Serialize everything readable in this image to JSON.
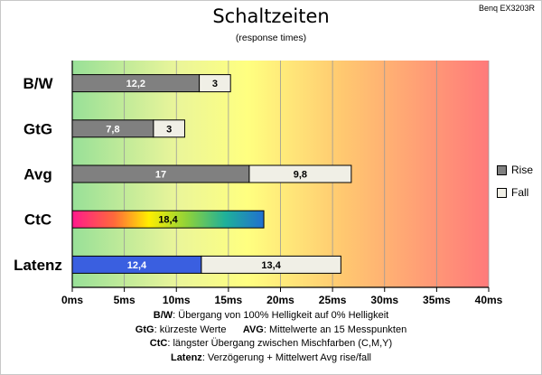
{
  "header": {
    "title": "Schaltzeiten",
    "subtitle": "(response times)",
    "corner_label": "Benq EX3203R"
  },
  "legend": [
    {
      "label": "Rise",
      "color": "#808080"
    },
    {
      "label": "Fall",
      "color": "#f0efe6"
    }
  ],
  "notes": [
    {
      "term": "B/W",
      "text": ":  Übergang von 100% Helligkeit auf 0% Helligkeit"
    },
    {
      "term": "GtG",
      "text": ": kürzeste  Werte",
      "term2": "AVG",
      "text2": ": Mittelwerte  an 15 Messpunkten"
    },
    {
      "term": "CtC",
      "text": ": längster Übergang  zwischen Mischfarben  (C,M,Y)"
    },
    {
      "term": "Latenz",
      "text": ": Verzögerung  + Mittelwert  Avg rise/fall"
    }
  ],
  "chart_data": {
    "type": "bar",
    "orientation": "horizontal",
    "stacked": true,
    "categories": [
      "B/W",
      "GtG",
      "Avg",
      "CtC",
      "Latenz"
    ],
    "series": [
      {
        "name": "Rise",
        "color": "#808080",
        "values": [
          12.2,
          7.8,
          17,
          18.4,
          12.4
        ],
        "labels": [
          "12,2",
          "7,8",
          "17",
          "18,4",
          "12,4"
        ]
      },
      {
        "name": "Fall",
        "color": "#f0efe6",
        "values": [
          3,
          3,
          9.8,
          null,
          13.4
        ],
        "labels": [
          "3",
          "3",
          "9,8",
          "",
          "13,4"
        ]
      }
    ],
    "special_fills": {
      "CtC": "rainbow-gradient",
      "Latenz": "#3a5fe0"
    },
    "x_ticks": [
      "0ms",
      "5ms",
      "10ms",
      "15ms",
      "20ms",
      "25ms",
      "30ms",
      "35ms",
      "40ms"
    ],
    "xlim": [
      0,
      40
    ],
    "background": "gradient green-yellow-orange-red",
    "grid": true,
    "legend_position": "right"
  }
}
